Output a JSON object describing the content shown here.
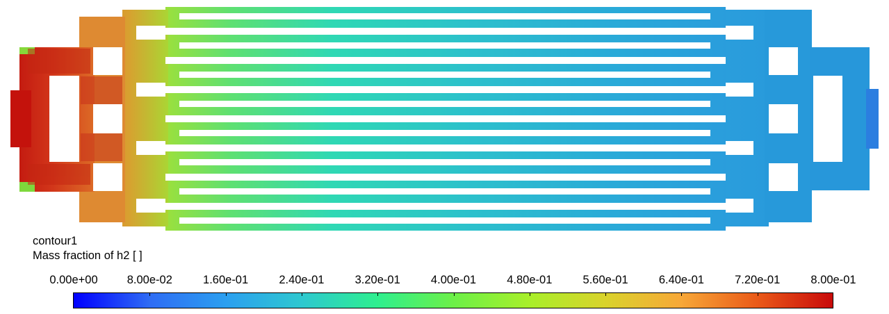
{
  "plot": {
    "name": "contour1",
    "variable_label": "Mass fraction of h2 [  ]"
  },
  "colorbar": {
    "min": 0.0,
    "max": 0.8,
    "tick_labels": [
      "0.00e+00",
      "8.00e-02",
      "1.60e-01",
      "2.40e-01",
      "3.20e-01",
      "4.00e-01",
      "4.80e-01",
      "5.60e-01",
      "6.40e-01",
      "7.20e-01",
      "8.00e-01"
    ],
    "colormap": [
      "#0000ff",
      "#2f6cf4",
      "#2b9ff0",
      "#2ec8d0",
      "#2eef8f",
      "#6cf048",
      "#a8ef2a",
      "#d9d32c",
      "#f7a838",
      "#ea5a18",
      "#c80a0a"
    ]
  },
  "colors": {
    "inlet_core": "#c41a10",
    "inlet_manifold": "#d8441c",
    "branch_hot": "#de8230",
    "channel_start": "#9ee03a",
    "channel_mid": "#2fd8b4",
    "channel_end": "#2aa0dc",
    "outlet_manifold": "#2796da"
  }
}
